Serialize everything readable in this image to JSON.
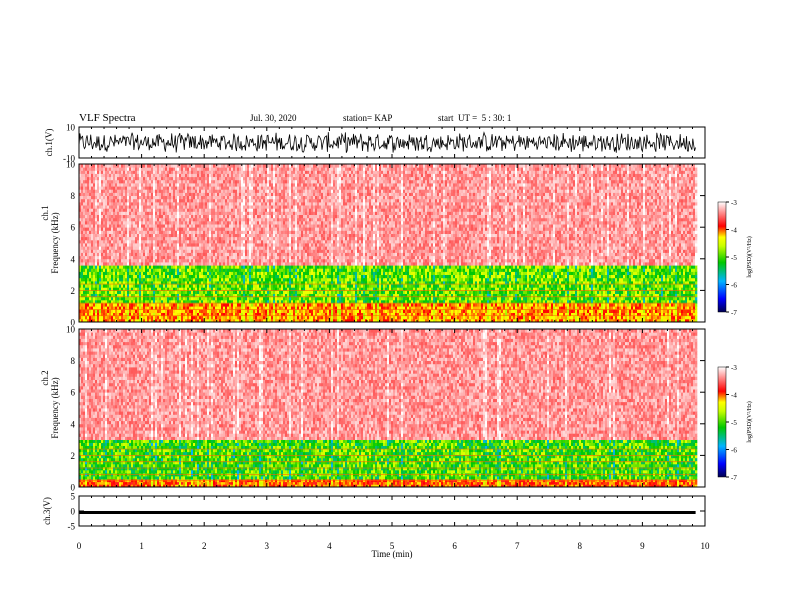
{
  "header": {
    "title": "VLF Spectra",
    "date": "Jul. 30, 2020",
    "station": "station= KAP",
    "start": "start  UT =  5 : 30: 1"
  },
  "chart_data": [
    {
      "type": "line",
      "panel": "ch1-waveform",
      "ylabel": "ch.1(V)",
      "ylim": [
        -10,
        10
      ],
      "y_ticks": [
        "10",
        "-10"
      ],
      "xlim": [
        0,
        10
      ],
      "data_extent_min": [
        0,
        9.85
      ],
      "signal": "dense noise, amplitude about ±6 V"
    },
    {
      "type": "heatmap",
      "panel": "ch1-spectrogram",
      "ylabel_top": "ch.1",
      "ylabel": "Frequency (kHz)",
      "ylim": [
        0,
        10
      ],
      "y_ticks": [
        "0",
        "2",
        "4",
        "6",
        "8",
        "10"
      ],
      "xlim": [
        0,
        10
      ],
      "colorbar": {
        "label": "log(PSD)(V²/Hz)",
        "range": [
          -7,
          -3
        ],
        "ticks": [
          "-3",
          "-4",
          "-5",
          "-6",
          "-7"
        ]
      },
      "bands_kHz": [
        {
          "from": 0,
          "to": 1.2,
          "level": -4.1
        },
        {
          "from": 1.2,
          "to": 3.6,
          "level": -4.9
        },
        {
          "from": 3.6,
          "to": 10,
          "level": -3.4
        }
      ]
    },
    {
      "type": "heatmap",
      "panel": "ch2-spectrogram",
      "ylabel_top": "ch.2",
      "ylabel": "Frequency (kHz)",
      "ylim": [
        0,
        10
      ],
      "y_ticks": [
        "0",
        "2",
        "4",
        "6",
        "8",
        "10"
      ],
      "xlim": [
        0,
        10
      ],
      "colorbar": {
        "label": "log(PSD)(V²/Hz)",
        "range": [
          -7,
          -3
        ],
        "ticks": [
          "-3",
          "-4",
          "-5",
          "-6",
          "-7"
        ]
      },
      "bands_kHz": [
        {
          "from": 0,
          "to": 0.5,
          "level": -4.0
        },
        {
          "from": 0.5,
          "to": 3.0,
          "level": -5.0
        },
        {
          "from": 3.0,
          "to": 10,
          "level": -3.4
        }
      ]
    },
    {
      "type": "line",
      "panel": "ch3-waveform",
      "ylabel": "ch.3(V)",
      "ylim": [
        -5,
        5
      ],
      "y_ticks": [
        "5",
        "0",
        "-5"
      ],
      "xlim": [
        0,
        10
      ],
      "signal": "flat trace near -0.5 V, thickness about 1 V"
    }
  ],
  "x_axis": {
    "label": "Time (min)",
    "ticks": [
      "0",
      "1",
      "2",
      "3",
      "4",
      "5",
      "6",
      "7",
      "8",
      "9",
      "10"
    ],
    "data_end": 9.85
  },
  "colors": {
    "spectrum_low": "#000080",
    "spectrum_mid": "#00c800",
    "spectrum_high": "#ff0000",
    "background": "#ffffff"
  }
}
